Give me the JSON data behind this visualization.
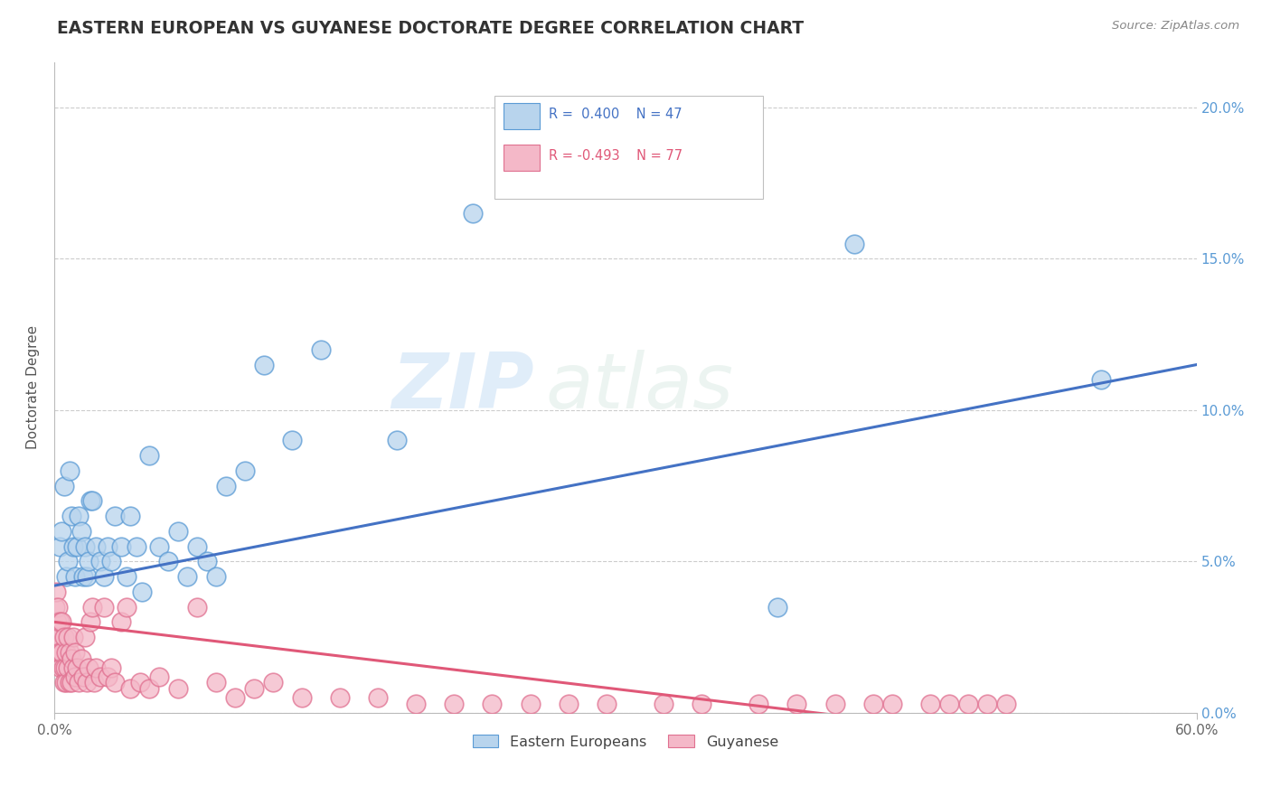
{
  "title": "EASTERN EUROPEAN VS GUYANESE DOCTORATE DEGREE CORRELATION CHART",
  "source": "Source: ZipAtlas.com",
  "ylabel": "Doctorate Degree",
  "ytick_vals": [
    0.0,
    5.0,
    10.0,
    15.0,
    20.0
  ],
  "xtick_vals": [
    0.0,
    60.0
  ],
  "xtick_labels": [
    "0.0%",
    "60.0%"
  ],
  "xlim": [
    0.0,
    60.0
  ],
  "ylim": [
    0.0,
    21.5
  ],
  "blue_R": 0.4,
  "blue_N": 47,
  "pink_R": -0.493,
  "pink_N": 77,
  "blue_color": "#b8d4ed",
  "blue_edge_color": "#5b9bd5",
  "blue_line_color": "#4472c4",
  "pink_color": "#f4b8c8",
  "pink_edge_color": "#e07090",
  "pink_line_color": "#e05878",
  "blue_label": "Eastern Europeans",
  "pink_label": "Guyanese",
  "watermark_zip": "ZIP",
  "watermark_atlas": "atlas",
  "background_color": "#ffffff",
  "blue_line_x0": 0.0,
  "blue_line_y0": 4.2,
  "blue_line_x1": 60.0,
  "blue_line_y1": 11.5,
  "pink_line_x0": 0.0,
  "pink_line_y0": 3.0,
  "pink_line_x1": 44.0,
  "pink_line_y1": -0.3,
  "blue_x": [
    0.3,
    0.4,
    0.5,
    0.6,
    0.7,
    0.8,
    0.9,
    1.0,
    1.1,
    1.2,
    1.3,
    1.4,
    1.5,
    1.6,
    1.7,
    1.8,
    1.9,
    2.0,
    2.2,
    2.4,
    2.6,
    2.8,
    3.0,
    3.2,
    3.5,
    3.8,
    4.0,
    4.3,
    4.6,
    5.0,
    5.5,
    6.0,
    6.5,
    7.0,
    7.5,
    8.0,
    8.5,
    9.0,
    10.0,
    11.0,
    12.5,
    14.0,
    18.0,
    22.0,
    38.0,
    42.0,
    55.0
  ],
  "blue_y": [
    5.5,
    6.0,
    7.5,
    4.5,
    5.0,
    8.0,
    6.5,
    5.5,
    4.5,
    5.5,
    6.5,
    6.0,
    4.5,
    5.5,
    4.5,
    5.0,
    7.0,
    7.0,
    5.5,
    5.0,
    4.5,
    5.5,
    5.0,
    6.5,
    5.5,
    4.5,
    6.5,
    5.5,
    4.0,
    8.5,
    5.5,
    5.0,
    6.0,
    4.5,
    5.5,
    5.0,
    4.5,
    7.5,
    8.0,
    11.5,
    9.0,
    12.0,
    9.0,
    16.5,
    3.5,
    15.5,
    11.0
  ],
  "pink_x": [
    0.05,
    0.1,
    0.1,
    0.15,
    0.2,
    0.2,
    0.25,
    0.3,
    0.3,
    0.35,
    0.4,
    0.4,
    0.45,
    0.5,
    0.5,
    0.55,
    0.6,
    0.6,
    0.7,
    0.7,
    0.8,
    0.8,
    0.9,
    0.9,
    1.0,
    1.0,
    1.1,
    1.1,
    1.2,
    1.3,
    1.4,
    1.5,
    1.6,
    1.7,
    1.8,
    1.9,
    2.0,
    2.1,
    2.2,
    2.4,
    2.6,
    2.8,
    3.0,
    3.2,
    3.5,
    3.8,
    4.0,
    4.5,
    5.0,
    5.5,
    6.5,
    7.5,
    8.5,
    9.5,
    10.5,
    11.5,
    13.0,
    15.0,
    17.0,
    19.0,
    21.0,
    23.0,
    25.0,
    27.0,
    29.0,
    32.0,
    34.0,
    37.0,
    39.0,
    41.0,
    43.0,
    44.0,
    46.0,
    47.0,
    48.0,
    49.0,
    50.0
  ],
  "pink_y": [
    3.5,
    2.5,
    4.0,
    3.0,
    2.0,
    3.5,
    2.5,
    2.0,
    3.0,
    1.5,
    2.0,
    3.0,
    1.5,
    1.0,
    2.5,
    1.5,
    1.0,
    2.0,
    1.5,
    2.5,
    1.0,
    2.0,
    1.0,
    1.8,
    1.5,
    2.5,
    1.2,
    2.0,
    1.5,
    1.0,
    1.8,
    1.2,
    2.5,
    1.0,
    1.5,
    3.0,
    3.5,
    1.0,
    1.5,
    1.2,
    3.5,
    1.2,
    1.5,
    1.0,
    3.0,
    3.5,
    0.8,
    1.0,
    0.8,
    1.2,
    0.8,
    3.5,
    1.0,
    0.5,
    0.8,
    1.0,
    0.5,
    0.5,
    0.5,
    0.3,
    0.3,
    0.3,
    0.3,
    0.3,
    0.3,
    0.3,
    0.3,
    0.3,
    0.3,
    0.3,
    0.3,
    0.3,
    0.3,
    0.3,
    0.3,
    0.3,
    0.3
  ]
}
